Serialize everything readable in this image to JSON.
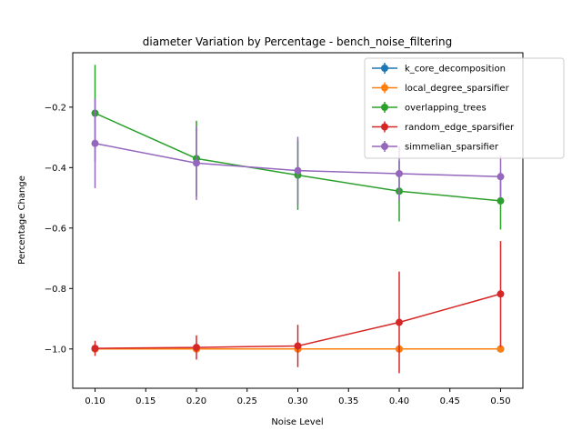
{
  "chart_data": {
    "type": "line",
    "title": "diameter Variation by Percentage - bench_noise_filtering",
    "xlabel": "Noise Level",
    "ylabel": "Percentage Change",
    "xlim": [
      0.078,
      0.522
    ],
    "ylim": [
      -1.13,
      -0.02
    ],
    "xticks": [
      0.1,
      0.15,
      0.2,
      0.25,
      0.3,
      0.35,
      0.4,
      0.45,
      0.5
    ],
    "xtick_labels": [
      "0.10",
      "0.15",
      "0.20",
      "0.25",
      "0.30",
      "0.35",
      "0.40",
      "0.45",
      "0.50"
    ],
    "yticks": [
      -1.0,
      -0.8,
      -0.6,
      -0.4,
      -0.2
    ],
    "ytick_labels": [
      "−1.0",
      "−0.8",
      "−0.6",
      "−0.4",
      "−0.2"
    ],
    "grid": false,
    "legend_position": "top-right",
    "x": [
      0.1,
      0.2,
      0.3,
      0.4,
      0.5
    ],
    "series": [
      {
        "name": "k_core_decomposition",
        "color": "#1f77b4",
        "values": [
          -1.0,
          -1.0,
          -1.0,
          -1.0,
          -1.0
        ],
        "errors": [
          0.0,
          0.0,
          0.0,
          0.0,
          0.0
        ]
      },
      {
        "name": "local_degree_sparsifier",
        "color": "#ff7f0e",
        "values": [
          -1.0,
          -1.0,
          -1.0,
          -1.0,
          -1.0
        ],
        "errors": [
          0.0,
          0.0,
          0.0,
          0.0,
          0.0
        ]
      },
      {
        "name": "overlapping_trees",
        "color": "#2ca02c",
        "values": [
          -0.22,
          -0.37,
          -0.425,
          -0.478,
          -0.51
        ],
        "errors": [
          0.16,
          0.125,
          0.115,
          0.1,
          0.095
        ]
      },
      {
        "name": "random_edge_sparsifier",
        "color": "#d62728",
        "values": [
          -0.998,
          -0.995,
          -0.99,
          -0.912,
          -0.818
        ],
        "errors": [
          0.025,
          0.04,
          0.07,
          0.168,
          0.175
        ]
      },
      {
        "name": "simmelian_sparsifier",
        "color": "#9467bd",
        "values": [
          -0.32,
          -0.385,
          -0.41,
          -0.42,
          -0.43
        ],
        "errors": [
          0.148,
          0.122,
          0.112,
          0.09,
          0.07
        ]
      }
    ]
  }
}
